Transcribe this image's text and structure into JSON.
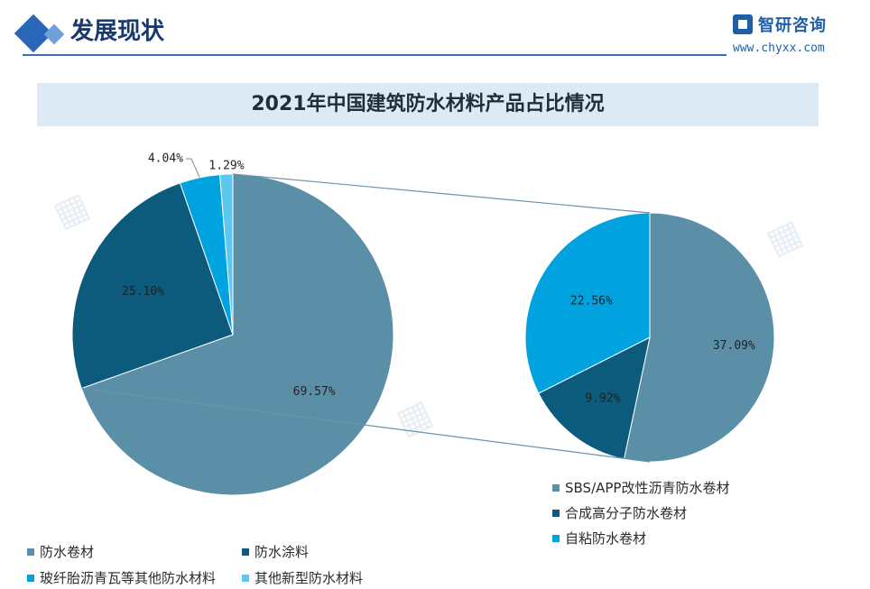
{
  "header": {
    "title": "发展现状",
    "brand_name": "智研咨询",
    "brand_url": "www.chyxx.com"
  },
  "colors": {
    "slate": "#5b8fa8",
    "navy": "#0c5a7c",
    "cyan": "#00a3e0",
    "lightcyan": "#5cc8f0",
    "connector": "#6b93ac"
  },
  "chart_data": [
    {
      "type": "pie",
      "title": "2021年中国建筑防水材料产品占比情况",
      "categories": [
        "防水卷材",
        "防水涂料",
        "玻纤胎沥青瓦等其他防水材料",
        "其他新型防水材料"
      ],
      "values": [
        69.57,
        25.1,
        4.04,
        1.29
      ],
      "labels": [
        "69.57%",
        "25.10%",
        "4.04%",
        "1.29%"
      ],
      "legend_position": "bottom-left"
    },
    {
      "type": "pie",
      "title": "",
      "categories": [
        "SBS/APP改性沥青防水卷材",
        "合成高分子防水卷材",
        "自粘防水卷材"
      ],
      "values": [
        37.09,
        9.92,
        22.56
      ],
      "labels": [
        "37.09%",
        "9.92%",
        "22.56%"
      ],
      "legend_position": "bottom-right"
    }
  ]
}
